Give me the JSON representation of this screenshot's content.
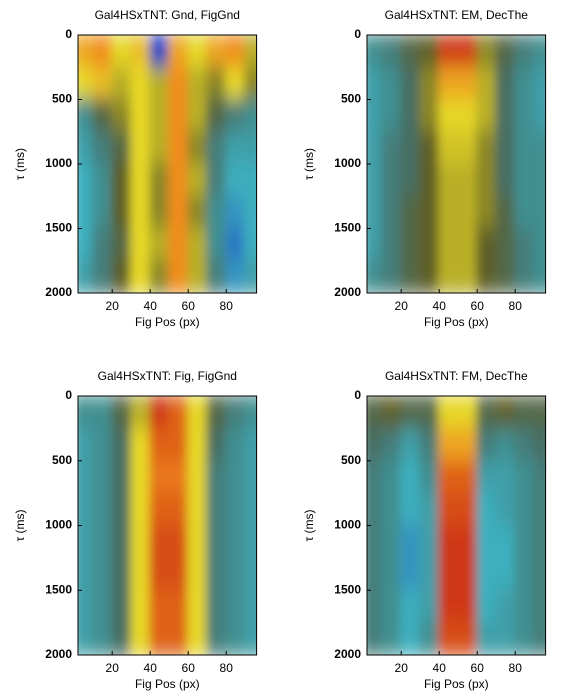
{
  "chart_data": [
    {
      "type": "heatmap",
      "title": "Gal4HSxTNT: Gnd, FigGnd",
      "xlabel": "Fig Pos (px)",
      "ylabel": "τ (ms)",
      "x": [
        5,
        15,
        25,
        35,
        45,
        55,
        65,
        75,
        85,
        95
      ],
      "y": [
        125,
        375,
        625,
        875,
        1125,
        1375,
        1625,
        1875
      ],
      "z": [
        [
          0.6,
          0.7,
          0.4,
          0.5,
          -0.9,
          0.6,
          0.4,
          0.6,
          0.7,
          0.3
        ],
        [
          0.4,
          0.5,
          0.3,
          0.4,
          0.3,
          0.7,
          0.3,
          0.2,
          0.4,
          0.2
        ],
        [
          -0.3,
          0.0,
          0.2,
          0.4,
          0.3,
          0.7,
          0.3,
          0.0,
          -0.2,
          -0.3
        ],
        [
          -0.4,
          -0.2,
          0.0,
          0.4,
          0.3,
          0.7,
          0.2,
          -0.2,
          -0.4,
          -0.4
        ],
        [
          -0.5,
          -0.3,
          0.1,
          0.4,
          0.2,
          0.7,
          0.3,
          -0.2,
          -0.5,
          -0.5
        ],
        [
          -0.5,
          -0.3,
          0.1,
          0.4,
          0.2,
          0.7,
          0.2,
          -0.3,
          -0.6,
          -0.5
        ],
        [
          -0.5,
          -0.2,
          0.0,
          0.4,
          0.3,
          0.7,
          0.3,
          -0.3,
          -0.7,
          -0.5
        ],
        [
          -0.4,
          -0.2,
          0.1,
          0.4,
          0.2,
          0.7,
          0.3,
          -0.2,
          -0.6,
          -0.4
        ]
      ],
      "zlim": [
        -1,
        1
      ],
      "xlim": [
        2,
        96
      ],
      "ylim": [
        0,
        2000
      ],
      "xticks": [
        20,
        40,
        60,
        80
      ],
      "yticks": [
        0,
        500,
        1000,
        1500,
        2000
      ]
    },
    {
      "type": "heatmap",
      "title": "Gal4HSxTNT: EM, DecThe",
      "xlabel": "Fig Pos (px)",
      "ylabel": "τ (ms)",
      "x": [
        5,
        15,
        25,
        35,
        45,
        55,
        65,
        75,
        85,
        95
      ],
      "y": [
        125,
        375,
        625,
        875,
        1125,
        1375,
        1625,
        1875
      ],
      "z": [
        [
          -0.3,
          -0.2,
          0.0,
          0.1,
          0.9,
          0.9,
          0.2,
          0.0,
          -0.2,
          -0.3
        ],
        [
          -0.4,
          -0.3,
          -0.1,
          0.2,
          0.6,
          0.6,
          0.3,
          -0.1,
          -0.3,
          -0.4
        ],
        [
          -0.4,
          -0.3,
          -0.1,
          0.2,
          0.4,
          0.4,
          0.3,
          -0.1,
          -0.3,
          -0.4
        ],
        [
          -0.4,
          -0.2,
          -0.1,
          0.1,
          0.35,
          0.35,
          0.2,
          -0.1,
          -0.3,
          -0.3
        ],
        [
          -0.4,
          -0.2,
          -0.1,
          0.1,
          0.3,
          0.3,
          0.2,
          -0.1,
          -0.3,
          -0.3
        ],
        [
          -0.4,
          -0.2,
          0.0,
          0.1,
          0.3,
          0.3,
          0.2,
          0.0,
          -0.3,
          -0.3
        ],
        [
          -0.4,
          -0.2,
          0.0,
          0.1,
          0.3,
          0.3,
          0.1,
          0.0,
          -0.2,
          -0.3
        ],
        [
          -0.3,
          -0.2,
          0.0,
          0.1,
          0.3,
          0.3,
          0.1,
          0.0,
          -0.2,
          -0.3
        ]
      ],
      "zlim": [
        -1,
        1
      ],
      "xlim": [
        2,
        96
      ],
      "ylim": [
        0,
        2000
      ],
      "xticks": [
        20,
        40,
        60,
        80
      ],
      "yticks": [
        0,
        500,
        1000,
        1500,
        2000
      ]
    },
    {
      "type": "heatmap",
      "title": "Gal4HSxTNT: Fig, FigGnd",
      "xlabel": "Fig Pos (px)",
      "ylabel": "τ (ms)",
      "x": [
        5,
        15,
        25,
        35,
        45,
        55,
        65,
        75,
        85,
        95
      ],
      "y": [
        125,
        375,
        625,
        875,
        1125,
        1375,
        1625,
        1875
      ],
      "z": [
        [
          -0.3,
          -0.3,
          0.0,
          0.3,
          0.9,
          0.8,
          0.4,
          0.0,
          -0.2,
          -0.3
        ],
        [
          -0.4,
          -0.3,
          -0.1,
          0.4,
          0.8,
          0.8,
          0.4,
          -0.1,
          -0.3,
          -0.4
        ],
        [
          -0.4,
          -0.3,
          -0.1,
          0.4,
          0.75,
          0.75,
          0.4,
          -0.2,
          -0.3,
          -0.4
        ],
        [
          -0.4,
          -0.3,
          -0.1,
          0.4,
          0.8,
          0.8,
          0.4,
          -0.2,
          -0.3,
          -0.4
        ],
        [
          -0.4,
          -0.3,
          -0.1,
          0.4,
          0.85,
          0.85,
          0.4,
          -0.2,
          -0.3,
          -0.4
        ],
        [
          -0.4,
          -0.3,
          -0.1,
          0.4,
          0.85,
          0.85,
          0.4,
          -0.2,
          -0.3,
          -0.4
        ],
        [
          -0.4,
          -0.3,
          -0.1,
          0.4,
          0.8,
          0.8,
          0.4,
          -0.2,
          -0.3,
          -0.4
        ],
        [
          -0.4,
          -0.3,
          -0.1,
          0.4,
          0.8,
          0.8,
          0.4,
          -0.2,
          -0.3,
          -0.4
        ]
      ],
      "zlim": [
        -1,
        1
      ],
      "xlim": [
        2,
        96
      ],
      "ylim": [
        0,
        2000
      ],
      "xticks": [
        20,
        40,
        60,
        80
      ],
      "yticks": [
        0,
        500,
        1000,
        1500,
        2000
      ]
    },
    {
      "type": "heatmap",
      "title": "Gal4HSxTNT: FM, DecThe",
      "xlabel": "Fig Pos (px)",
      "ylabel": "τ (ms)",
      "x": [
        5,
        15,
        25,
        35,
        45,
        55,
        65,
        75,
        85,
        95
      ],
      "y": [
        125,
        375,
        625,
        875,
        1125,
        1375,
        1625,
        1875
      ],
      "z": [
        [
          0.0,
          0.1,
          0.0,
          0.0,
          0.4,
          0.4,
          0.0,
          0.1,
          0.0,
          0.0
        ],
        [
          -0.1,
          -0.2,
          -0.4,
          -0.2,
          0.6,
          0.6,
          -0.2,
          -0.3,
          -0.2,
          -0.1
        ],
        [
          -0.2,
          -0.3,
          -0.5,
          -0.3,
          0.8,
          0.8,
          -0.4,
          -0.4,
          -0.3,
          -0.2
        ],
        [
          -0.2,
          -0.3,
          -0.5,
          -0.4,
          0.85,
          0.85,
          -0.5,
          -0.4,
          -0.3,
          -0.2
        ],
        [
          -0.2,
          -0.3,
          -0.6,
          -0.4,
          0.9,
          0.9,
          -0.5,
          -0.5,
          -0.3,
          -0.2
        ],
        [
          -0.2,
          -0.3,
          -0.6,
          -0.4,
          0.9,
          0.9,
          -0.5,
          -0.5,
          -0.3,
          -0.2
        ],
        [
          -0.2,
          -0.3,
          -0.5,
          -0.4,
          0.9,
          0.9,
          -0.5,
          -0.4,
          -0.3,
          -0.2
        ],
        [
          -0.2,
          -0.3,
          -0.5,
          -0.3,
          0.85,
          0.85,
          -0.4,
          -0.4,
          -0.3,
          -0.2
        ]
      ],
      "zlim": [
        -1,
        1
      ],
      "xlim": [
        2,
        96
      ],
      "ylim": [
        0,
        2000
      ],
      "xticks": [
        20,
        40,
        60,
        80
      ],
      "yticks": [
        0,
        500,
        1000,
        1500,
        2000
      ]
    }
  ]
}
